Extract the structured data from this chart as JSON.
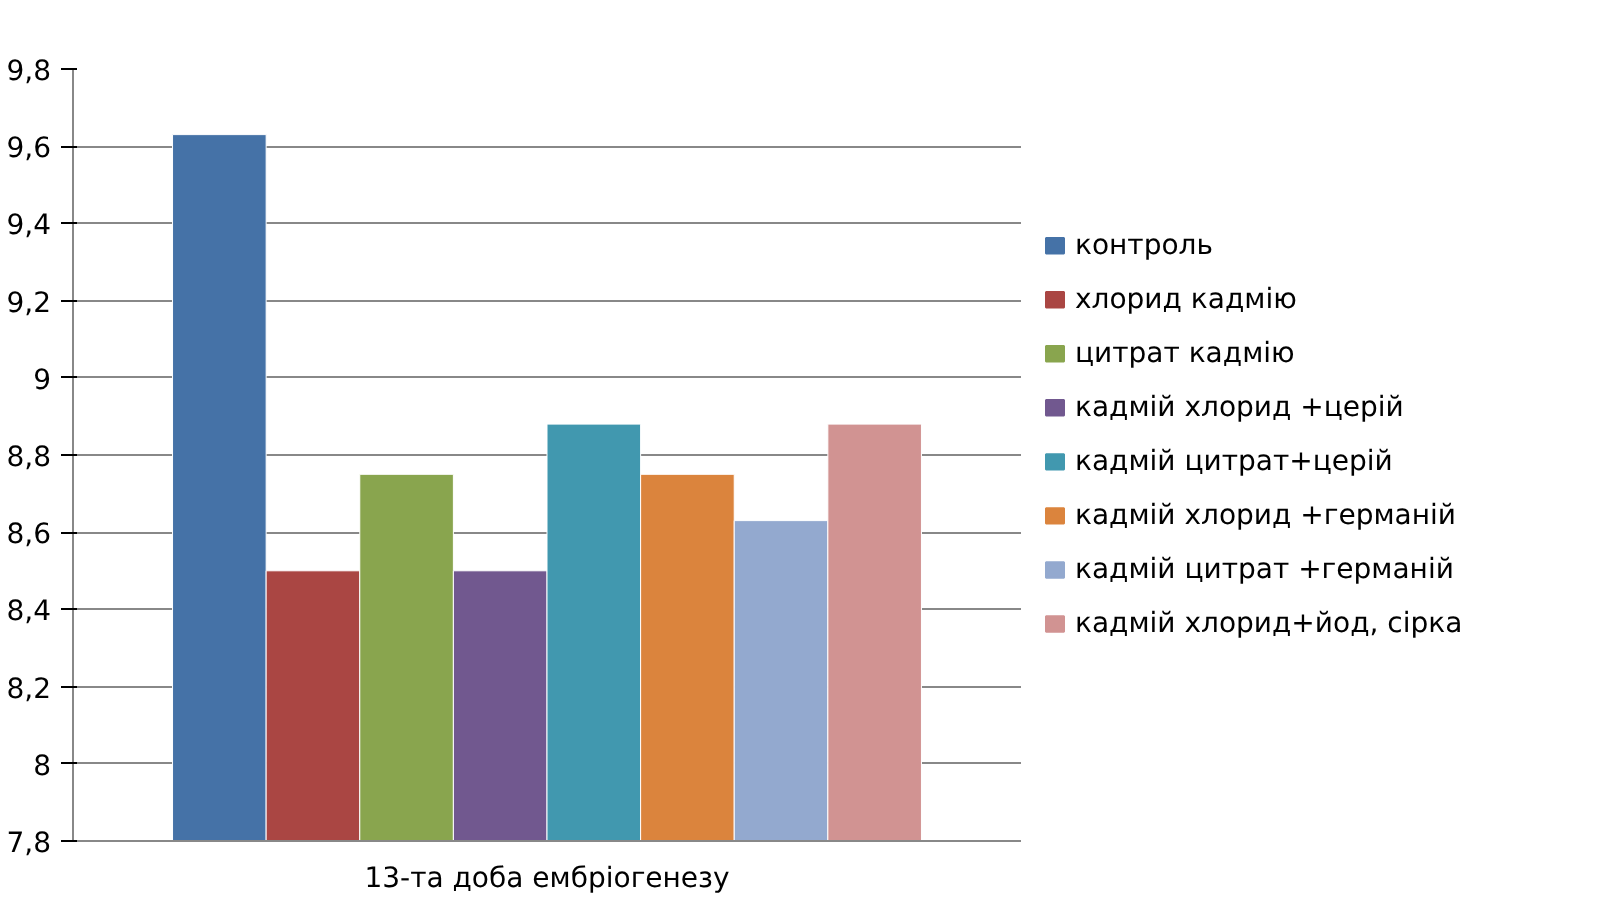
{
  "chart_data": {
    "type": "bar",
    "categories": [
      "13-та доба ембріогенезу"
    ],
    "series": [
      {
        "name": "контроль",
        "color": "#4572a7",
        "values": [
          9.63
        ]
      },
      {
        "name": "хлорид кадмію",
        "color": "#aa4643",
        "values": [
          8.5
        ]
      },
      {
        "name": "цитрат кадмію",
        "color": "#89a54e",
        "values": [
          8.75
        ]
      },
      {
        "name": "кадмій хлорид +церій",
        "color": "#71588f",
        "values": [
          8.5
        ]
      },
      {
        "name": "кадмій цитрат+церій",
        "color": "#4198af",
        "values": [
          8.88
        ]
      },
      {
        "name": "кадмій хлорид +германій",
        "color": "#db843d",
        "values": [
          8.75
        ]
      },
      {
        "name": "кадмій цитрат +германій",
        "color": "#93a9cf",
        "values": [
          8.63
        ]
      },
      {
        "name": "кадмій хлорид+йод, сірка",
        "color": "#d19392",
        "values": [
          8.88
        ]
      }
    ],
    "ylim": [
      7.8,
      9.8
    ],
    "yticks": [
      {
        "value": 7.8,
        "label": "7,8"
      },
      {
        "value": 8,
        "label": "8"
      },
      {
        "value": 8.2,
        "label": "8,2"
      },
      {
        "value": 8.4,
        "label": "8,4"
      },
      {
        "value": 8.6,
        "label": "8,6"
      },
      {
        "value": 8.8,
        "label": "8,8"
      },
      {
        "value": 9,
        "label": "9"
      },
      {
        "value": 9.2,
        "label": "9,2"
      },
      {
        "value": 9.4,
        "label": "9,4"
      },
      {
        "value": 9.6,
        "label": "9,6"
      },
      {
        "value": 9.8,
        "label": "9,8"
      }
    ],
    "grid": "y",
    "legend": "right"
  }
}
